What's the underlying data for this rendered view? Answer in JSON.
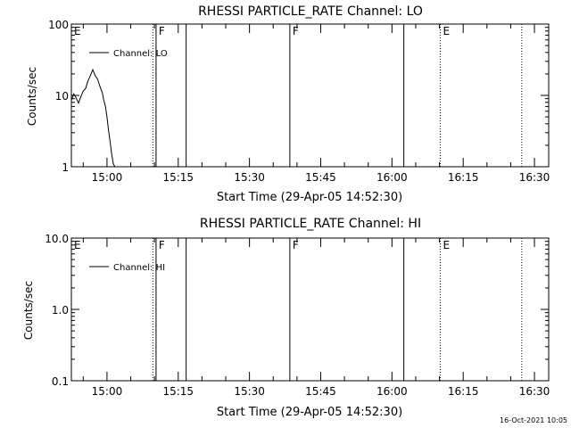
{
  "footer": {
    "timestamp": "16-Oct-2021 10:05"
  },
  "chart_data": [
    {
      "type": "line",
      "title": "RHESSI PARTICLE_RATE Channel: LO",
      "xlabel": "Start Time (29-Apr-05 14:52:30)",
      "ylabel": "Counts/sec",
      "yscale": "log",
      "ylim": [
        1,
        100
      ],
      "yticks": [
        1,
        10,
        100
      ],
      "ytick_labels": [
        "1",
        "10",
        "100"
      ],
      "xlim": [
        "14:52:30",
        "16:33:00"
      ],
      "xticks": [
        "15:00",
        "15:15",
        "15:30",
        "15:45",
        "16:00",
        "16:15",
        "16:30"
      ],
      "legend": {
        "position": "top-left"
      },
      "series": [
        {
          "name": "Channel: LO",
          "x": [
            "14:52:30",
            "14:53:00",
            "14:53:30",
            "14:54:00",
            "14:54:30",
            "14:55:00",
            "14:55:30",
            "14:56:00",
            "14:56:30",
            "14:57:00",
            "14:57:30",
            "14:58:00",
            "14:58:20",
            "14:58:40",
            "14:59:00",
            "14:59:20",
            "14:59:40",
            "15:00:00",
            "15:00:20",
            "15:00:40",
            "15:01:00",
            "15:01:20",
            "15:01:40"
          ],
          "y": [
            8.5,
            10.5,
            9.2,
            7.8,
            9.6,
            11.5,
            12.5,
            16,
            19,
            23,
            19,
            17,
            14.5,
            12.5,
            11,
            8.5,
            7,
            5,
            3.2,
            2.2,
            1.5,
            1.1,
            1
          ]
        }
      ],
      "flags": [
        {
          "label": "E",
          "time": "14:52:30",
          "style": "solid"
        },
        {
          "label": "",
          "time": "15:09:40",
          "style": "dotted"
        },
        {
          "label": "F",
          "time": "15:10:20",
          "style": "solid"
        },
        {
          "label": "",
          "time": "15:16:40",
          "style": "solid"
        },
        {
          "label": "F",
          "time": "15:38:30",
          "style": "solid"
        },
        {
          "label": "",
          "time": "16:02:30",
          "style": "solid"
        },
        {
          "label": "E",
          "time": "16:10:10",
          "style": "dotted"
        },
        {
          "label": "",
          "time": "16:27:20",
          "style": "dotted"
        }
      ]
    },
    {
      "type": "line",
      "title": "RHESSI PARTICLE_RATE Channel: HI",
      "xlabel": "Start Time (29-Apr-05 14:52:30)",
      "ylabel": "Counts/sec",
      "yscale": "log",
      "ylim": [
        0.1,
        10
      ],
      "yticks": [
        0.1,
        1,
        10
      ],
      "ytick_labels": [
        "0.1",
        "1.0",
        "10.0"
      ],
      "xlim": [
        "14:52:30",
        "16:33:00"
      ],
      "xticks": [
        "15:00",
        "15:15",
        "15:30",
        "15:45",
        "16:00",
        "16:15",
        "16:30"
      ],
      "legend": {
        "position": "top-left"
      },
      "series": [
        {
          "name": "Channel: HI",
          "x": [],
          "y": []
        }
      ],
      "flags": [
        {
          "label": "E",
          "time": "14:52:30",
          "style": "solid"
        },
        {
          "label": "",
          "time": "15:09:40",
          "style": "dotted"
        },
        {
          "label": "F",
          "time": "15:10:20",
          "style": "solid"
        },
        {
          "label": "",
          "time": "15:16:40",
          "style": "solid"
        },
        {
          "label": "F",
          "time": "15:38:30",
          "style": "solid"
        },
        {
          "label": "",
          "time": "16:02:30",
          "style": "solid"
        },
        {
          "label": "E",
          "time": "16:10:10",
          "style": "dotted"
        },
        {
          "label": "",
          "time": "16:27:20",
          "style": "dotted"
        }
      ]
    }
  ]
}
